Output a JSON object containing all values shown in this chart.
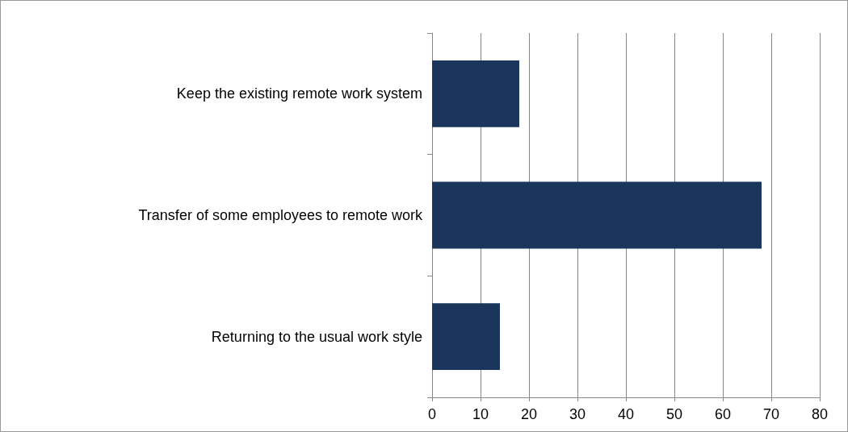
{
  "chart_data": {
    "type": "bar",
    "orientation": "horizontal",
    "categories": [
      "Keep the existing remote work system",
      "Transfer of some employees to remote work",
      "Returning to the usual work style"
    ],
    "values": [
      18,
      68,
      14
    ],
    "color": "#1b365d",
    "xlim": [
      0,
      80
    ],
    "xticks": [
      0,
      10,
      20,
      30,
      40,
      50,
      60,
      70,
      80
    ],
    "grid": "x"
  }
}
